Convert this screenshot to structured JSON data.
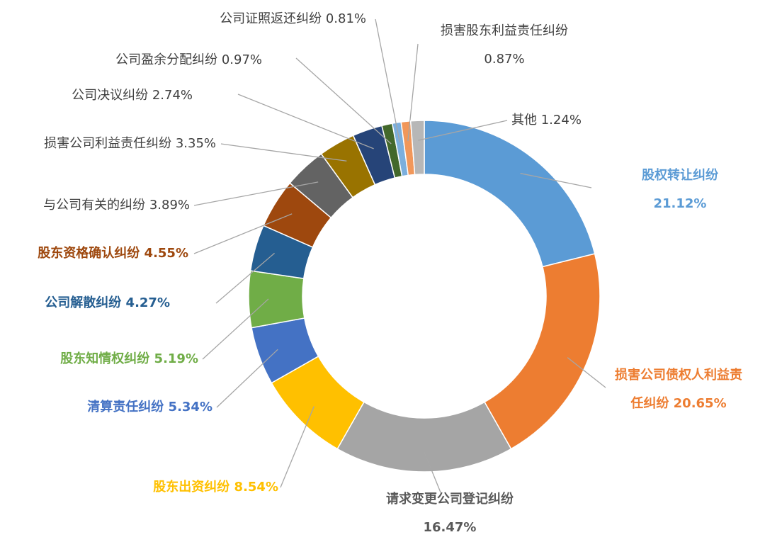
{
  "chart_data": {
    "type": "donut",
    "categories": [
      "股权转让纠纷",
      "损害公司债权人利益责任纠纷",
      "请求变更公司登记纠纷",
      "股东出资纠纷",
      "清算责任纠纷",
      "股东知情权纠纷",
      "公司解散纠纷",
      "股东资格确认纠纷",
      "与公司有关的纠纷",
      "损害公司利益责任纠纷",
      "公司决议纠纷",
      "公司盈余分配纠纷",
      "公司证照返还纠纷",
      "损害股东利益责任纠纷",
      "其他"
    ],
    "values": [
      21.12,
      20.65,
      16.47,
      8.54,
      5.34,
      5.19,
      4.27,
      4.55,
      3.89,
      3.35,
      2.74,
      0.97,
      0.81,
      0.87,
      1.24
    ],
    "value_labels": [
      "21.12%",
      "20.65%",
      "16.47%",
      "8.54%",
      "5.34%",
      "5.19%",
      "4.27%",
      "4.55%",
      "3.89%",
      "3.35%",
      "2.74%",
      "0.97%",
      "0.81%",
      "0.87%",
      "1.24%"
    ],
    "colors": [
      "#5b9bd5",
      "#ed7d31",
      "#a5a5a5",
      "#ffc000",
      "#4472c4",
      "#70ad47",
      "#255e91",
      "#9e480e",
      "#636363",
      "#997300",
      "#264478",
      "#43682b",
      "#7cafdd",
      "#f1975a",
      "#b7b7b7"
    ]
  }
}
